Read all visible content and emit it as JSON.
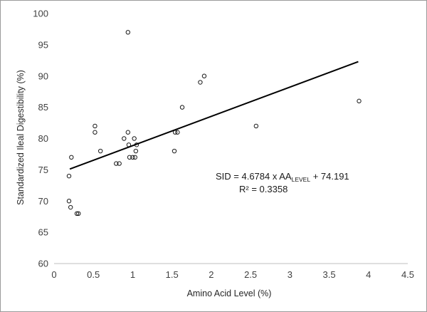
{
  "chart_data": {
    "type": "scatter",
    "title": "",
    "xlabel": "Amino Acid Level (%)",
    "ylabel": "Standardized Ileal Digestibility (%)",
    "xlim": [
      0,
      4.5
    ],
    "ylim": [
      60,
      100
    ],
    "xticks": [
      "0",
      "0.5",
      "1",
      "1.5",
      "2",
      "2.5",
      "3",
      "3.5",
      "4",
      "4.5"
    ],
    "yticks": [
      "60",
      "65",
      "70",
      "75",
      "80",
      "85",
      "90",
      "95",
      "100"
    ],
    "grid": false,
    "legend": "none",
    "marker_color": "#1a1a1a",
    "trendline": {
      "slope": 4.6784,
      "intercept": 74.191,
      "x_range": [
        0.2,
        3.87
      ],
      "color": "#000000"
    },
    "annotation": {
      "eq_prefix": "SID = 4.6784 x AA",
      "eq_subscript": "LEVEL",
      "eq_suffix": " + 74.191",
      "r2": "R² = 0.3358"
    },
    "points": [
      {
        "x": 0.19,
        "y": 74
      },
      {
        "x": 0.19,
        "y": 70
      },
      {
        "x": 0.21,
        "y": 69
      },
      {
        "x": 0.22,
        "y": 77
      },
      {
        "x": 0.29,
        "y": 68
      },
      {
        "x": 0.31,
        "y": 68
      },
      {
        "x": 0.52,
        "y": 82
      },
      {
        "x": 0.52,
        "y": 81
      },
      {
        "x": 0.59,
        "y": 78
      },
      {
        "x": 0.79,
        "y": 76
      },
      {
        "x": 0.83,
        "y": 76
      },
      {
        "x": 0.89,
        "y": 80
      },
      {
        "x": 0.94,
        "y": 97
      },
      {
        "x": 0.94,
        "y": 81
      },
      {
        "x": 0.95,
        "y": 79
      },
      {
        "x": 0.96,
        "y": 77
      },
      {
        "x": 1.0,
        "y": 77
      },
      {
        "x": 1.02,
        "y": 80
      },
      {
        "x": 1.03,
        "y": 77
      },
      {
        "x": 1.04,
        "y": 78
      },
      {
        "x": 1.05,
        "y": 79
      },
      {
        "x": 1.53,
        "y": 78
      },
      {
        "x": 1.54,
        "y": 81
      },
      {
        "x": 1.57,
        "y": 81
      },
      {
        "x": 1.63,
        "y": 85
      },
      {
        "x": 1.86,
        "y": 89
      },
      {
        "x": 1.91,
        "y": 90
      },
      {
        "x": 2.57,
        "y": 82
      },
      {
        "x": 3.88,
        "y": 86
      }
    ]
  }
}
